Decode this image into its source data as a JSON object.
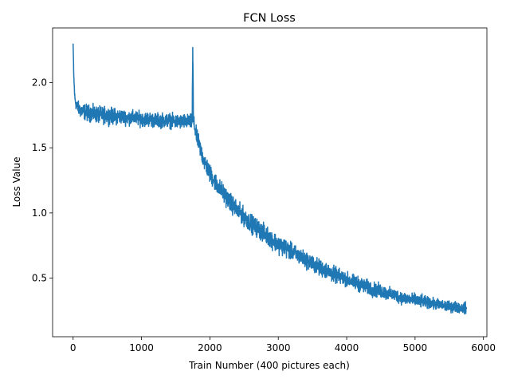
{
  "chart_data": {
    "type": "line",
    "title": "FCN Loss",
    "xlabel": "Train Number (400 pictures each)",
    "ylabel": "Loss Value",
    "xlim": [
      -300,
      6050
    ],
    "ylim": [
      0.05,
      2.42
    ],
    "xticks": [
      0,
      1000,
      2000,
      3000,
      4000,
      5000,
      6000
    ],
    "yticks": [
      0.5,
      1.0,
      1.5,
      2.0
    ],
    "xtick_labels": [
      "0",
      "1000",
      "2000",
      "3000",
      "4000",
      "5000",
      "6000"
    ],
    "ytick_labels": [
      "0.5",
      "1.0",
      "1.5",
      "2.0"
    ],
    "grid": false,
    "line_color": "#1f77b4",
    "series": [
      {
        "x": [
          0,
          10,
          25,
          50,
          100,
          200,
          300,
          400,
          500,
          600,
          700,
          800,
          900,
          1000,
          1100,
          1200,
          1300,
          1400,
          1500,
          1600,
          1700,
          1740,
          1750,
          1760,
          1800,
          1900,
          2000,
          2100,
          2200,
          2300,
          2400,
          2500,
          2600,
          2700,
          2800,
          2900,
          3000,
          3100,
          3200,
          3300,
          3400,
          3500,
          3600,
          3700,
          3800,
          3900,
          4000,
          4100,
          4200,
          4300,
          4400,
          4500,
          4600,
          4700,
          4800,
          4900,
          5000,
          5100,
          5200,
          5300,
          5400,
          5500,
          5600,
          5700,
          5750
        ],
        "y": [
          2.3,
          2.05,
          1.88,
          1.82,
          1.79,
          1.77,
          1.76,
          1.75,
          1.75,
          1.74,
          1.74,
          1.73,
          1.73,
          1.72,
          1.72,
          1.71,
          1.71,
          1.71,
          1.7,
          1.7,
          1.7,
          1.7,
          2.27,
          1.7,
          1.6,
          1.42,
          1.3,
          1.22,
          1.15,
          1.08,
          1.02,
          0.97,
          0.92,
          0.88,
          0.84,
          0.8,
          0.76,
          0.73,
          0.7,
          0.67,
          0.64,
          0.61,
          0.58,
          0.56,
          0.53,
          0.51,
          0.49,
          0.47,
          0.45,
          0.43,
          0.41,
          0.4,
          0.38,
          0.37,
          0.35,
          0.34,
          0.33,
          0.32,
          0.31,
          0.3,
          0.29,
          0.28,
          0.28,
          0.27,
          0.27
        ],
        "noise_amplitude": [
          0.0,
          0.05,
          0.05,
          0.07,
          0.08,
          0.09,
          0.09,
          0.09,
          0.09,
          0.09,
          0.08,
          0.08,
          0.08,
          0.08,
          0.08,
          0.08,
          0.08,
          0.08,
          0.08,
          0.08,
          0.08,
          0.08,
          0.0,
          0.08,
          0.09,
          0.1,
          0.1,
          0.1,
          0.1,
          0.1,
          0.1,
          0.1,
          0.1,
          0.1,
          0.1,
          0.1,
          0.1,
          0.1,
          0.09,
          0.09,
          0.09,
          0.09,
          0.09,
          0.09,
          0.09,
          0.08,
          0.08,
          0.08,
          0.08,
          0.08,
          0.08,
          0.08,
          0.07,
          0.07,
          0.07,
          0.07,
          0.07,
          0.07,
          0.06,
          0.06,
          0.06,
          0.06,
          0.06,
          0.06,
          0.06
        ]
      }
    ]
  }
}
